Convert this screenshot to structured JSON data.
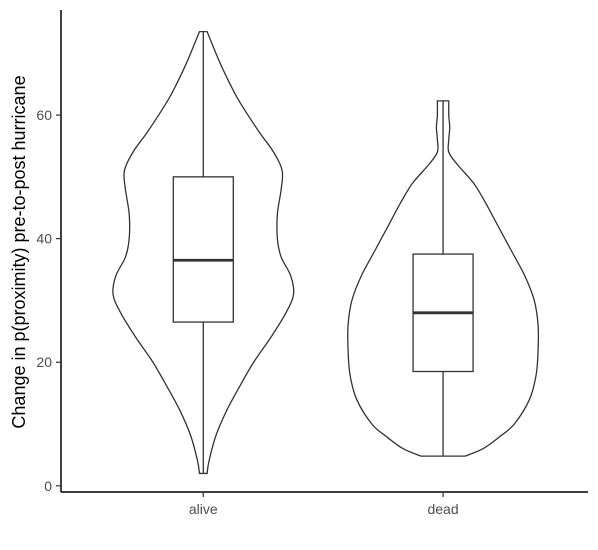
{
  "chart_data": {
    "type": "violin",
    "ylabel": "Change in p(proximity) pre-to-post hurricane",
    "xlabel": "",
    "ylim": [
      -1,
      77
    ],
    "yticks": [
      0,
      20,
      40,
      60
    ],
    "categories": [
      "alive",
      "dead"
    ],
    "groups": [
      {
        "category": "alive",
        "min": 2,
        "q1": 26.5,
        "median": 36.5,
        "q3": 50,
        "max": 73.5,
        "density": [
          [
            2,
            0.04
          ],
          [
            4,
            0.06
          ],
          [
            8,
            0.13
          ],
          [
            12,
            0.24
          ],
          [
            16,
            0.38
          ],
          [
            20,
            0.53
          ],
          [
            24,
            0.71
          ],
          [
            28,
            0.87
          ],
          [
            31,
            0.95
          ],
          [
            34,
            0.92
          ],
          [
            37,
            0.82
          ],
          [
            40,
            0.78
          ],
          [
            44,
            0.78
          ],
          [
            48,
            0.82
          ],
          [
            51,
            0.83
          ],
          [
            54,
            0.74
          ],
          [
            57,
            0.6
          ],
          [
            60,
            0.47
          ],
          [
            63,
            0.35
          ],
          [
            66,
            0.25
          ],
          [
            69,
            0.16
          ],
          [
            72,
            0.08
          ],
          [
            73.5,
            0.04
          ]
        ]
      },
      {
        "category": "dead",
        "min": 4.8,
        "q1": 18.5,
        "median": 28,
        "q3": 37.5,
        "max": 62.3,
        "density": [
          [
            4.8,
            0.23
          ],
          [
            6,
            0.42
          ],
          [
            8,
            0.6
          ],
          [
            10,
            0.75
          ],
          [
            14,
            0.91
          ],
          [
            18,
            0.98
          ],
          [
            22,
            1.0
          ],
          [
            26,
            1.0
          ],
          [
            30,
            0.96
          ],
          [
            34,
            0.86
          ],
          [
            38,
            0.72
          ],
          [
            42,
            0.58
          ],
          [
            46,
            0.44
          ],
          [
            49,
            0.32
          ],
          [
            52,
            0.15
          ],
          [
            54,
            0.06
          ],
          [
            56,
            0.06
          ],
          [
            58,
            0.07
          ],
          [
            60,
            0.06
          ],
          [
            62.3,
            0.06
          ]
        ]
      }
    ]
  }
}
